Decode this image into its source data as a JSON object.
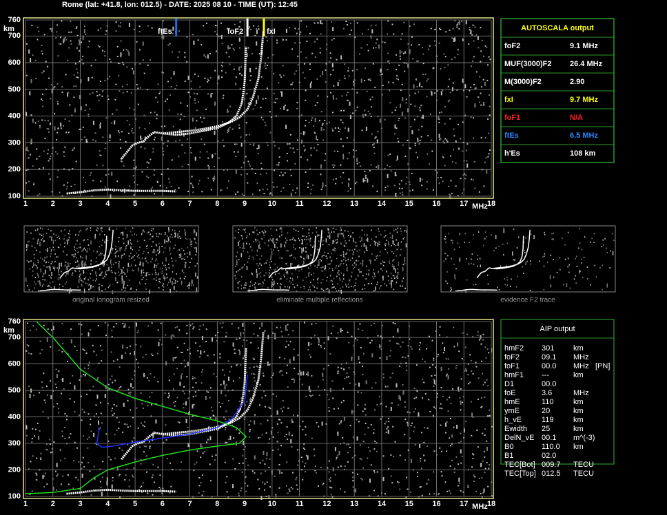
{
  "header": "Rome (lat: +41.8, lon: 012.5) - DATE: 2025 08 10 - TIME (UT): 12:45",
  "chart_data": [
    {
      "type": "ionogram",
      "xlim": [
        1,
        18
      ],
      "ylim": [
        100,
        760
      ],
      "xticks": [
        1,
        2,
        3,
        4,
        5,
        6,
        7,
        8,
        9,
        10,
        11,
        12,
        13,
        14,
        15,
        16,
        17,
        18
      ],
      "yticks": [
        100,
        200,
        300,
        400,
        500,
        600,
        700,
        760
      ],
      "x_unit": "MHz",
      "y_unit": "km",
      "grid": true,
      "markers": [
        {
          "label": "ftEs",
          "value": 6.5,
          "color": "#1e6ee6"
        },
        {
          "label": "foF2",
          "value": 9.1,
          "color": "#ffffff"
        },
        {
          "label": "fxI",
          "value": 9.7,
          "color": "#ffff00"
        }
      ],
      "series": [
        {
          "color": "#ffffff",
          "x": [
            4.5,
            4.7,
            4.9,
            5.1,
            5.3,
            5.5,
            5.7,
            6,
            6.5,
            7,
            7.5,
            8,
            8.4,
            8.7,
            8.9,
            9,
            9.05
          ],
          "values": [
            240,
            265,
            290,
            300,
            305,
            325,
            340,
            335,
            330,
            335,
            345,
            355,
            375,
            400,
            450,
            530,
            660
          ]
        },
        {
          "color": "#ffffff",
          "x": [
            6,
            6.5,
            7,
            7.5,
            8,
            8.5,
            8.8,
            9.1,
            9.3,
            9.5,
            9.6,
            9.68
          ],
          "values": [
            335,
            340,
            345,
            352,
            362,
            378,
            395,
            425,
            470,
            540,
            620,
            720
          ]
        },
        {
          "color": "#ffffff",
          "x": [
            2.5,
            3,
            3.5,
            4,
            4.5,
            5,
            5.5,
            6,
            6.5
          ],
          "values": [
            110,
            115,
            122,
            125,
            122,
            120,
            120,
            120,
            118
          ]
        }
      ]
    },
    {
      "type": "ionogram",
      "xlim": [
        1,
        18
      ],
      "ylim": [
        100,
        760
      ],
      "xticks": [
        1,
        2,
        3,
        4,
        5,
        6,
        7,
        8,
        9,
        10,
        11,
        12,
        13,
        14,
        15,
        16,
        17,
        18
      ],
      "yticks": [
        100,
        200,
        300,
        400,
        500,
        600,
        700,
        760
      ],
      "x_unit": "MHz",
      "y_unit": "km",
      "grid": true,
      "series": [
        {
          "color": "#ffffff",
          "x": [
            4.5,
            4.7,
            4.9,
            5.1,
            5.3,
            5.5,
            5.7,
            6,
            6.5,
            7,
            7.5,
            8,
            8.4,
            8.7,
            8.9,
            9,
            9.05
          ],
          "values": [
            240,
            265,
            290,
            300,
            305,
            325,
            340,
            335,
            330,
            335,
            345,
            355,
            375,
            400,
            450,
            530,
            660
          ]
        },
        {
          "color": "#ffffff",
          "x": [
            6,
            6.5,
            7,
            7.5,
            8,
            8.5,
            8.8,
            9.1,
            9.3,
            9.5,
            9.6,
            9.68
          ],
          "values": [
            335,
            340,
            345,
            352,
            362,
            378,
            395,
            425,
            470,
            540,
            620,
            720
          ]
        },
        {
          "color": "#ffffff",
          "x": [
            2.5,
            3,
            3.5,
            4,
            4.5,
            5,
            5.5,
            6,
            6.5
          ],
          "values": [
            110,
            115,
            122,
            125,
            122,
            120,
            120,
            120,
            118
          ]
        },
        {
          "color": "#2233ff",
          "x": [
            3.7,
            3.6,
            3.8,
            4.2,
            5,
            6,
            7,
            8,
            8.5,
            9,
            9.1
          ],
          "values": [
            360,
            300,
            285,
            290,
            305,
            320,
            335,
            360,
            390,
            460,
            560
          ]
        },
        {
          "color": "#22dd22",
          "x": [
            1.4,
            2,
            3,
            4,
            5,
            6,
            7,
            8,
            8.7,
            9.05,
            8.8,
            8,
            7,
            6,
            5,
            4,
            3.5,
            3,
            2,
            1
          ],
          "values": [
            760,
            700,
            580,
            510,
            470,
            440,
            410,
            385,
            360,
            325,
            300,
            290,
            275,
            255,
            230,
            200,
            170,
            130,
            115,
            110
          ]
        }
      ]
    }
  ],
  "autoscala": {
    "title": "AUTOSCALA output",
    "rows": [
      {
        "label": "foF2",
        "value": "9.1 MHz",
        "color": "#ffffff"
      },
      {
        "label": "MUF(3000)F2",
        "value": "26.4 MHz",
        "color": "#ffffff"
      },
      {
        "label": "M(3000)F2",
        "value": "2.90",
        "color": "#ffffff"
      },
      {
        "label": "fxI",
        "value": "9.7 MHz",
        "color": "#ffff00"
      },
      {
        "label": "foF1",
        "value": "N/A",
        "color": "#ff2020"
      },
      {
        "label": "ftEs",
        "value": "6.5 MHz",
        "color": "#2f86ff"
      },
      {
        "label": "h'Es",
        "value": "108     km",
        "color": "#ffffff"
      }
    ]
  },
  "thumbnails": [
    "original ionogram resized",
    "eliminate multiple reflections",
    "evidence F2 trace"
  ],
  "aip": {
    "title": "AIP output",
    "rows": [
      [
        "hmF2",
        "301",
        "km",
        ""
      ],
      [
        "foF2",
        "09.1",
        "MHz",
        ""
      ],
      [
        "foF1",
        "00.0",
        "MHz",
        "[PN]"
      ],
      [
        "hmF1",
        "---",
        "km",
        ""
      ],
      [
        "D1",
        "00.0",
        "",
        ""
      ],
      [
        "foE",
        "3.6",
        "MHz",
        ""
      ],
      [
        "hmE",
        "110",
        "km",
        ""
      ],
      [
        "ymE",
        "20",
        "km",
        ""
      ],
      [
        "h_vE",
        "119",
        "km",
        ""
      ],
      [
        "Ewidth",
        "25",
        "km",
        ""
      ],
      [
        "DelN_vE",
        "00.1",
        "m^(-3)",
        ""
      ],
      [
        "B0",
        "110.0",
        "km",
        ""
      ],
      [
        "B1",
        "02.0",
        "",
        ""
      ],
      [
        "TEC[Bot]",
        "009.7",
        "TECU",
        ""
      ],
      [
        "TEC[Top]",
        "012.5",
        "TECU",
        ""
      ]
    ]
  }
}
